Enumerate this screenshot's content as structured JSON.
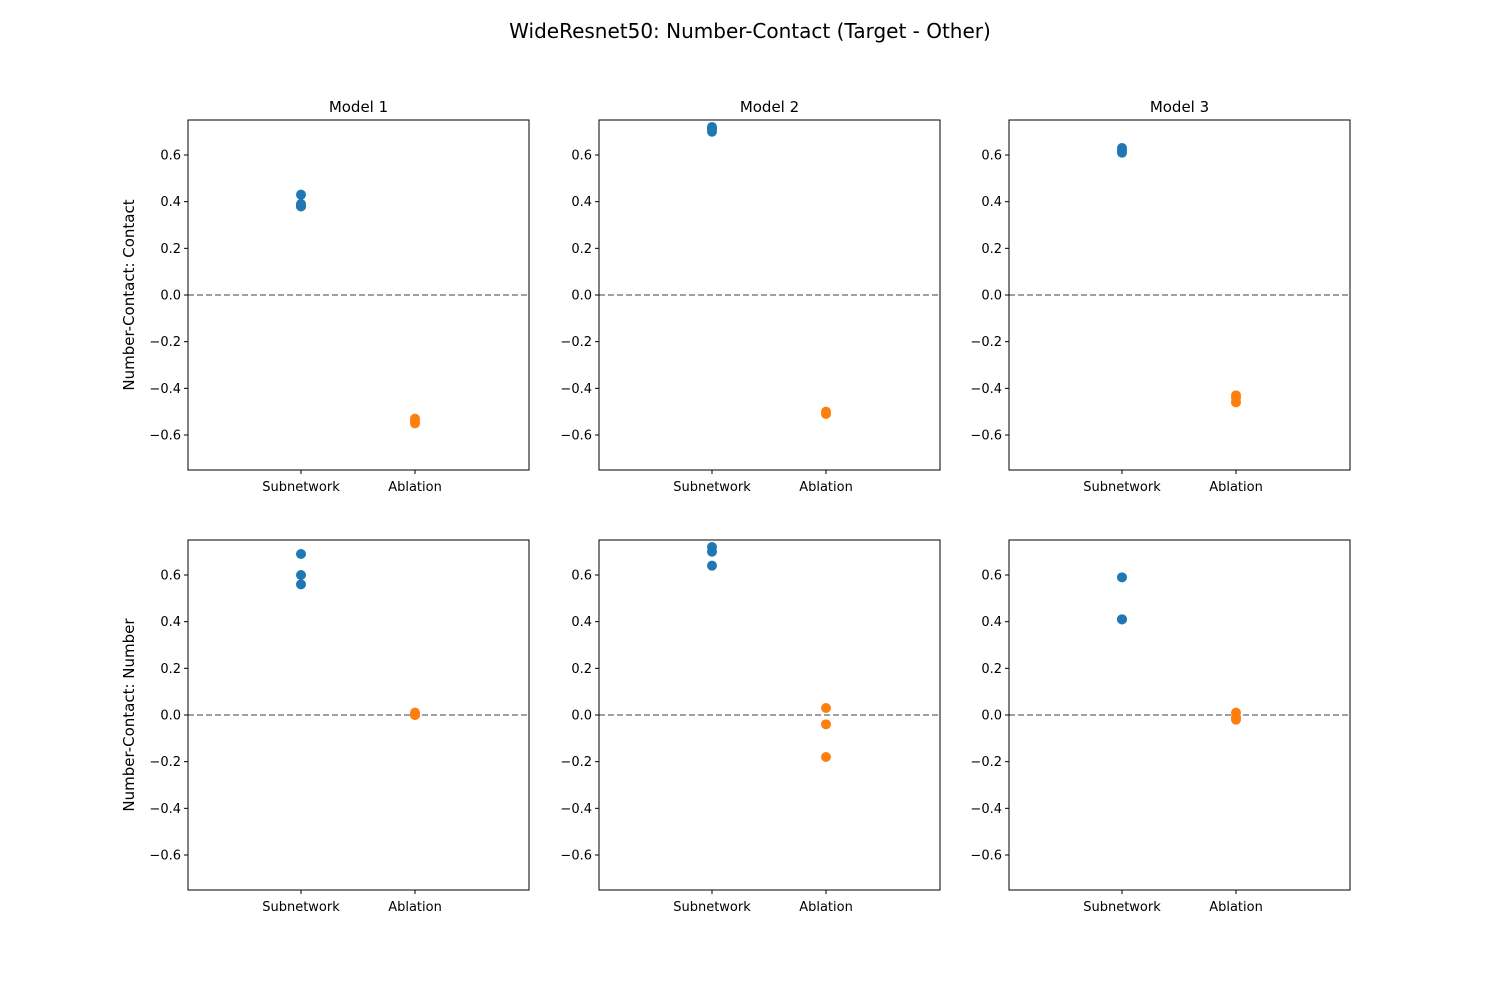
{
  "chart_data": {
    "type": "scatter",
    "title": "WideResnet50: Number-Contact (Target - Other)",
    "categories": [
      "Subnetwork",
      "Ablation"
    ],
    "yticks": [
      -0.6,
      -0.4,
      -0.2,
      0.0,
      0.2,
      0.4,
      0.6
    ],
    "ylim": [
      -0.75,
      0.75
    ],
    "reference_line": 0.0,
    "colors": {
      "Subnetwork": "#1f77b4",
      "Ablation": "#ff7f0e"
    },
    "rows": [
      {
        "ylabel": "Number-Contact: Contact",
        "panels": [
          {
            "title": "Model 1",
            "Subnetwork": [
              0.43,
              0.39,
              0.38,
              0.38
            ],
            "Ablation": [
              -0.53,
              -0.54,
              -0.55
            ]
          },
          {
            "title": "Model 2",
            "Subnetwork": [
              0.72,
              0.71,
              0.7
            ],
            "Ablation": [
              -0.5,
              -0.51
            ]
          },
          {
            "title": "Model 3",
            "Subnetwork": [
              0.63,
              0.62,
              0.61
            ],
            "Ablation": [
              -0.43,
              -0.44,
              -0.46
            ]
          }
        ]
      },
      {
        "ylabel": "Number-Contact: Number",
        "panels": [
          {
            "title": "",
            "Subnetwork": [
              0.69,
              0.6,
              0.56
            ],
            "Ablation": [
              0.01,
              0.0,
              0.0
            ]
          },
          {
            "title": "",
            "Subnetwork": [
              0.72,
              0.7,
              0.64
            ],
            "Ablation": [
              0.03,
              -0.04,
              -0.18
            ]
          },
          {
            "title": "",
            "Subnetwork": [
              0.59,
              0.41,
              0.41
            ],
            "Ablation": [
              0.01,
              -0.01,
              -0.02
            ]
          }
        ]
      }
    ]
  }
}
